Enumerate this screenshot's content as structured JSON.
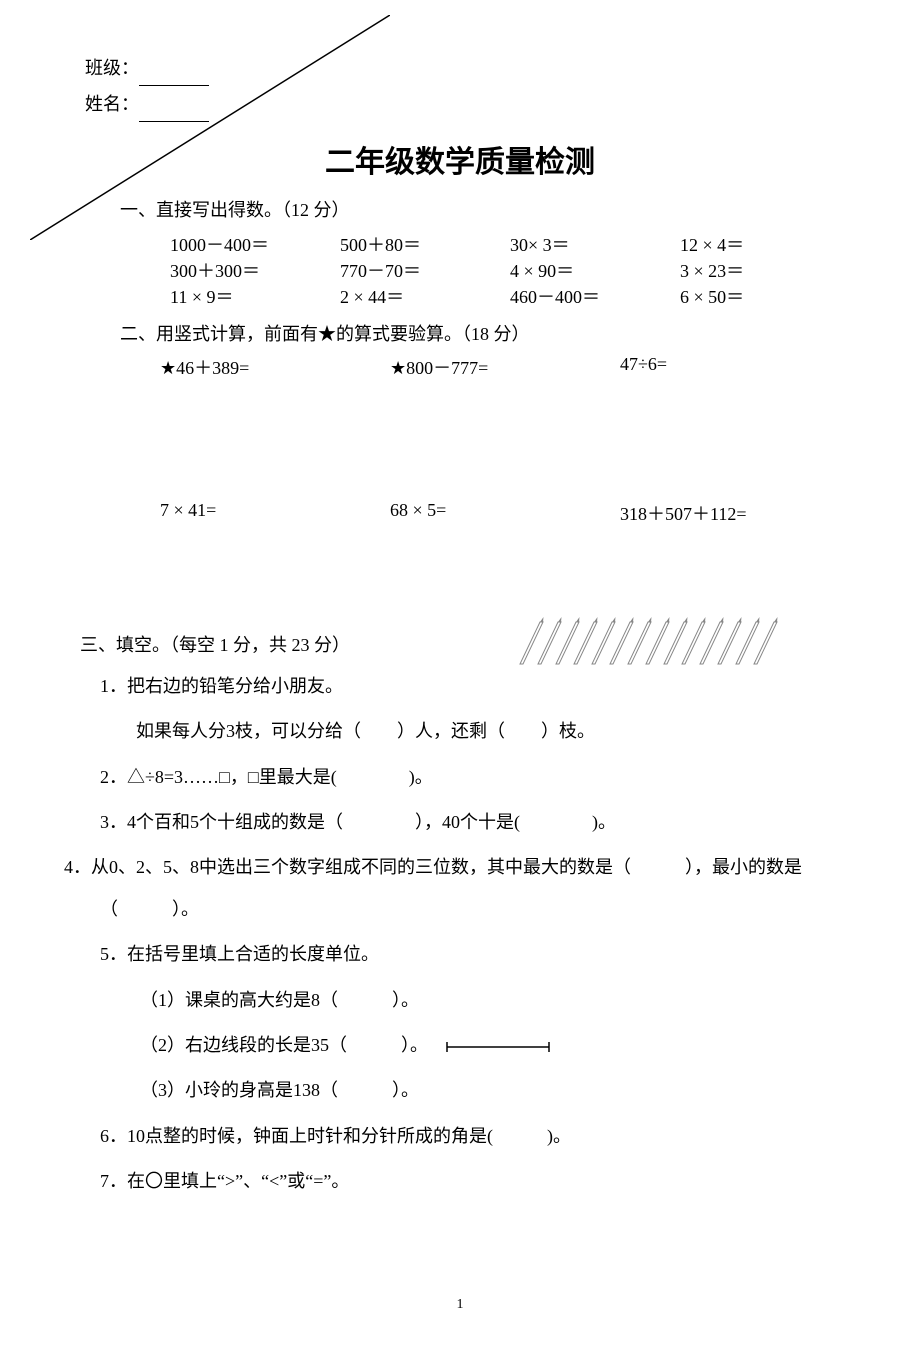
{
  "header": {
    "class_label": "班级：",
    "name_label": "姓名："
  },
  "title": "二年级数学质量检测",
  "section1": {
    "heading": "一、直接写出得数。（12 分）",
    "rows": [
      [
        "1000－400＝",
        "500＋80＝",
        "30× 3＝",
        "12 × 4＝"
      ],
      [
        "300＋300＝",
        "770－70＝",
        "4 × 90＝",
        "3 × 23＝"
      ],
      [
        "11 × 9＝",
        "2 × 44＝",
        "460－400＝",
        "6 × 50＝"
      ]
    ]
  },
  "section2": {
    "heading": "二、用竖式计算，前面有★的算式要验算。（18 分）",
    "row1": [
      "★46＋389=",
      "★800－777=",
      "47÷6="
    ],
    "row2": [
      "7 × 41=",
      "68 × 5=",
      "318＋507＋112="
    ]
  },
  "section3": {
    "heading": "三、填空。（每空 1 分，共 23 分）",
    "q1_line1": "1．把右边的铅笔分给小朋友。",
    "q1_line2": "如果每人分3枝，可以分给（　　）人，还剩（　　）枝。",
    "q2": "2．△÷8=3……□，□里最大是(　　　　)。",
    "q3": "3．4个百和5个十组成的数是（　　　　），40个十是(　　　　)。",
    "q4": "4．从0、2、5、8中选出三个数字组成不同的三位数，其中最大的数是（　　　），最小的数是（　　　）。",
    "q5_head": "5．在括号里填上合适的长度单位。",
    "q5_1": "（1）课桌的高大约是8（　　　）。",
    "q5_2": "（2）右边线段的长是35（　　　）。",
    "q5_3": "（3）小玲的身高是138（　　　）。",
    "q6": "6．10点整的时候，钟面上时针和分针所成的角是(　　　)。",
    "q7": "7．在〇里填上“>”、“<”或“=”。"
  },
  "pencil_count": 14,
  "page_number": "1",
  "colors": {
    "text": "#000000",
    "bg": "#ffffff",
    "pencil_stroke": "#888888"
  }
}
